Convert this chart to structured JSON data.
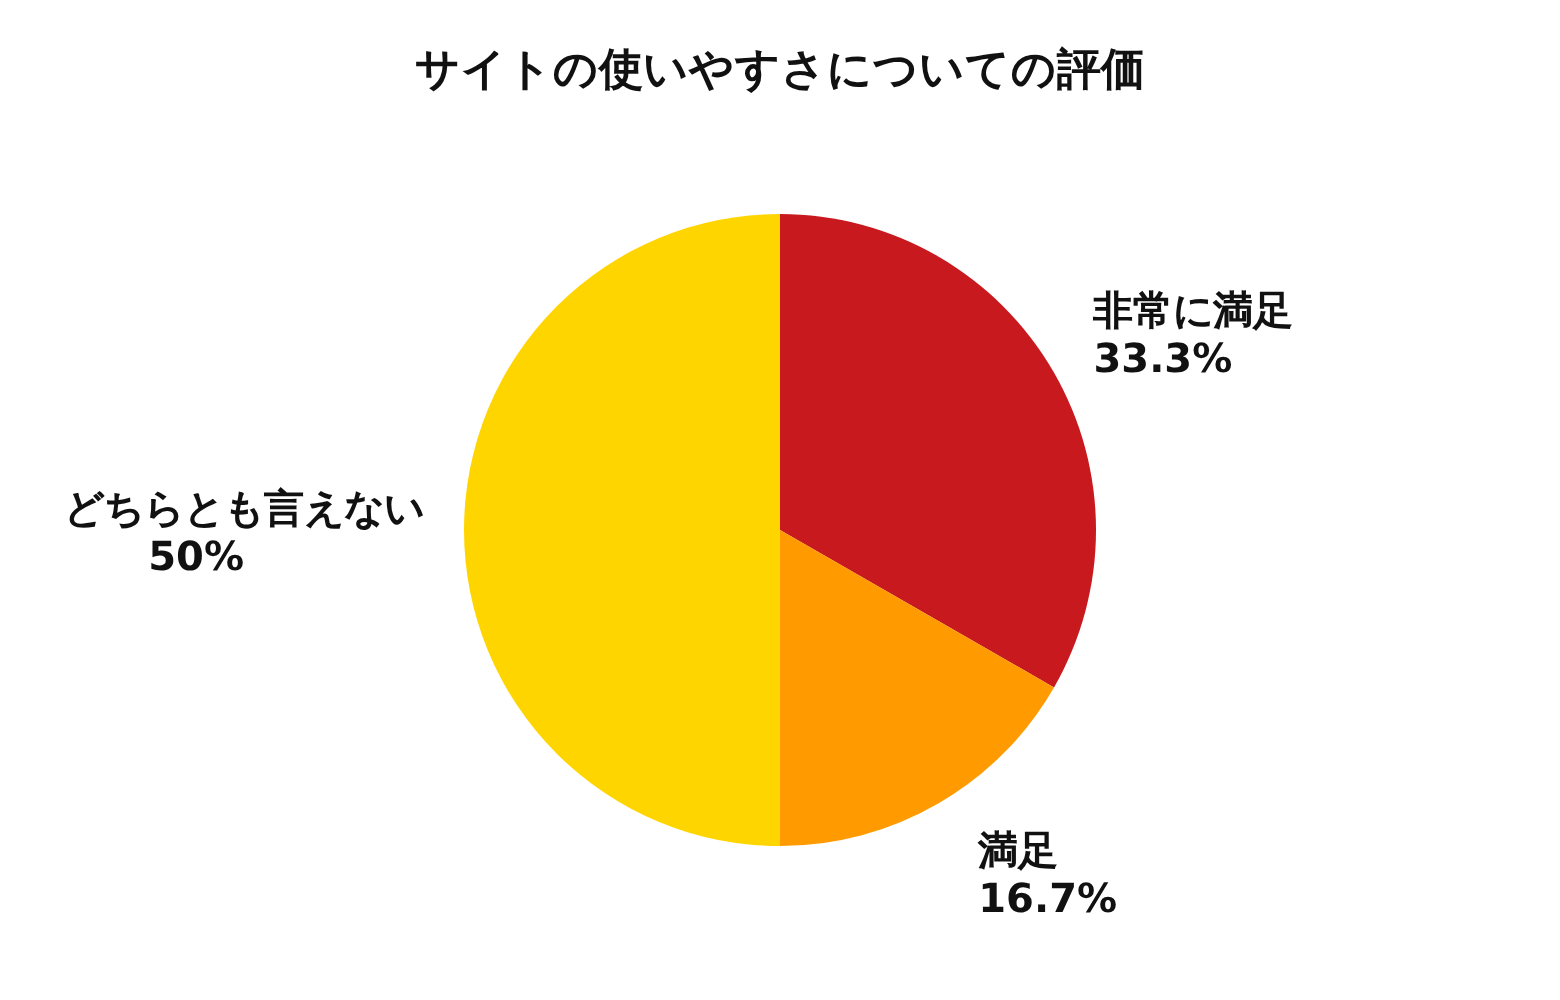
{
  "chart_data": {
    "type": "pie",
    "title": "サイトの使いやすさについての評価",
    "categories": [
      "非常に満足",
      "満足",
      "どちらとも言えない"
    ],
    "values": [
      33.3,
      16.7,
      50
    ],
    "value_labels": [
      "33.3%",
      "16.7%",
      "50%"
    ],
    "colors": [
      "#c8191e",
      "#ff9a00",
      "#ffd500"
    ]
  }
}
